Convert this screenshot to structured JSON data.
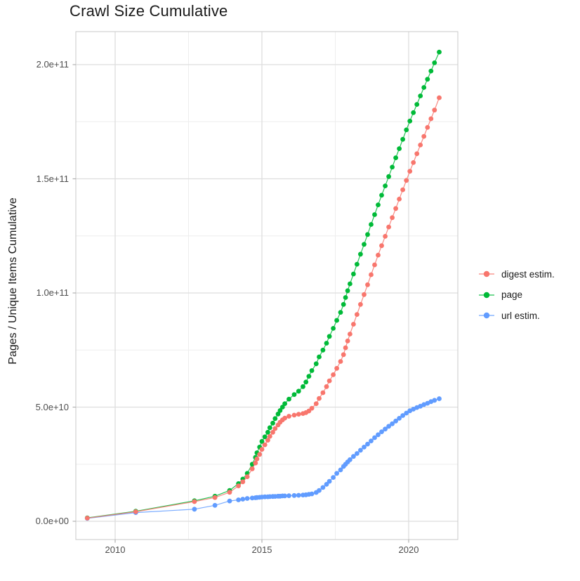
{
  "title": "Crawl Size Cumulative",
  "colors": {
    "background": "#FFFFFF",
    "digest": "#F8766D",
    "page": "#00BA38",
    "url": "#619CFF",
    "grid_major": "#DDDDDD",
    "grid_minor": "#EEEEEE",
    "panel_border": "#C9C9C9",
    "tick_mark": "#B0B0B0",
    "tick_text": "#4D4D4D",
    "title_text": "#1A1A1A"
  },
  "chart_data": {
    "type": "scatter",
    "title": "Crawl Size Cumulative",
    "xlabel": "",
    "ylabel": "Pages / Unique Items Cumulative",
    "value_unit": "items, values stored in billions (1e9)",
    "grid": true,
    "legend_position": "right",
    "draw_order": [
      "page",
      "url estim.",
      "digest estim."
    ],
    "x_axis": {
      "range": [
        2008.66,
        2021.67
      ],
      "ticks": [
        2010,
        2015,
        2020
      ],
      "tick_labels": [
        "2010",
        "2015",
        "2020"
      ],
      "minor_ticks": [
        2012.5,
        2017.5
      ]
    },
    "y_axis": {
      "range_billions": [
        -8,
        214.5
      ],
      "ticks_billions": [
        0,
        50,
        100,
        150,
        200
      ],
      "tick_labels": [
        "0.0e+00",
        "5.0e+10",
        "1.0e+11",
        "1.5e+11",
        "2.0e+11"
      ],
      "minor_ticks_billions": [
        25,
        75,
        125,
        175
      ]
    },
    "x_years": [
      2009.05,
      2010.7,
      2012.7,
      2013.4,
      2013.9,
      2014.2,
      2014.35,
      2014.5,
      2014.67,
      2014.78,
      2014.83,
      2014.92,
      2015.0,
      2015.1,
      2015.2,
      2015.27,
      2015.37,
      2015.45,
      2015.55,
      2015.62,
      2015.7,
      2015.78,
      2015.92,
      2016.1,
      2016.25,
      2016.4,
      2016.5,
      2016.6,
      2016.7,
      2016.85,
      2016.95,
      2017.08,
      2017.2,
      2017.3,
      2017.43,
      2017.55,
      2017.68,
      2017.78,
      2017.85,
      2017.92,
      2018.0,
      2018.12,
      2018.24,
      2018.36,
      2018.48,
      2018.6,
      2018.72,
      2018.84,
      2018.96,
      2019.08,
      2019.2,
      2019.32,
      2019.44,
      2019.56,
      2019.68,
      2019.8,
      2019.92,
      2020.04,
      2020.16,
      2020.28,
      2020.4,
      2020.52,
      2020.64,
      2020.76,
      2020.88,
      2021.04
    ],
    "series": [
      {
        "name": "digest estim.",
        "color": "#F8766D",
        "values_billions": [
          1.4,
          4.2,
          8.6,
          10.4,
          12.7,
          15.5,
          17.3,
          19.5,
          23.0,
          25.5,
          27.3,
          29.3,
          31.5,
          33.5,
          35.5,
          37.2,
          39.0,
          40.6,
          42.2,
          43.4,
          44.4,
          45.2,
          46.0,
          46.5,
          46.9,
          47.2,
          47.6,
          48.3,
          49.5,
          51.5,
          53.8,
          56.3,
          59.0,
          61.5,
          64.2,
          67.0,
          70.0,
          73.0,
          76.0,
          79.0,
          82.0,
          86.3,
          90.6,
          95.0,
          99.3,
          103.6,
          108.0,
          112.3,
          116.6,
          120.7,
          124.8,
          128.9,
          133.0,
          137.0,
          141.1,
          145.2,
          149.3,
          153.3,
          157.1,
          161.0,
          164.8,
          168.6,
          172.5,
          176.3,
          180.1,
          185.5
        ]
      },
      {
        "name": "page",
        "color": "#00BA38",
        "values_billions": [
          1.5,
          4.4,
          9.0,
          11.0,
          13.5,
          16.5,
          18.5,
          21.0,
          25.0,
          28.0,
          30.0,
          32.5,
          35.0,
          37.0,
          39.0,
          41.0,
          43.0,
          45.0,
          47.0,
          48.5,
          50.0,
          51.5,
          53.5,
          55.5,
          57.0,
          59.0,
          61.0,
          63.5,
          66.0,
          69.0,
          72.0,
          75.0,
          78.0,
          81.0,
          84.5,
          88.0,
          91.5,
          95.0,
          98.0,
          101.0,
          104.0,
          108.3,
          112.6,
          117.0,
          121.3,
          125.6,
          130.0,
          134.3,
          138.6,
          142.8,
          146.9,
          151.0,
          155.1,
          159.2,
          163.2,
          167.3,
          171.4,
          175.3,
          179.0,
          182.6,
          186.3,
          190.0,
          193.6,
          197.2,
          200.8,
          205.5
        ]
      },
      {
        "name": "url estim.",
        "color": "#619CFF",
        "values_billions": [
          1.3,
          3.8,
          5.3,
          7.0,
          8.9,
          9.4,
          9.7,
          10.0,
          10.2,
          10.3,
          10.4,
          10.5,
          10.6,
          10.7,
          10.75,
          10.8,
          10.85,
          10.9,
          11.0,
          11.0,
          11.1,
          11.1,
          11.2,
          11.3,
          11.4,
          11.5,
          11.6,
          11.8,
          12.0,
          12.6,
          13.5,
          14.8,
          16.2,
          17.5,
          19.2,
          21.0,
          22.5,
          24.0,
          25.0,
          26.0,
          27.0,
          28.4,
          29.7,
          31.1,
          32.5,
          33.8,
          35.2,
          36.6,
          37.9,
          39.2,
          40.4,
          41.6,
          42.7,
          43.9,
          45.1,
          46.3,
          47.4,
          48.4,
          49.1,
          49.8,
          50.4,
          51.1,
          51.7,
          52.4,
          53.0,
          53.7
        ]
      }
    ]
  }
}
